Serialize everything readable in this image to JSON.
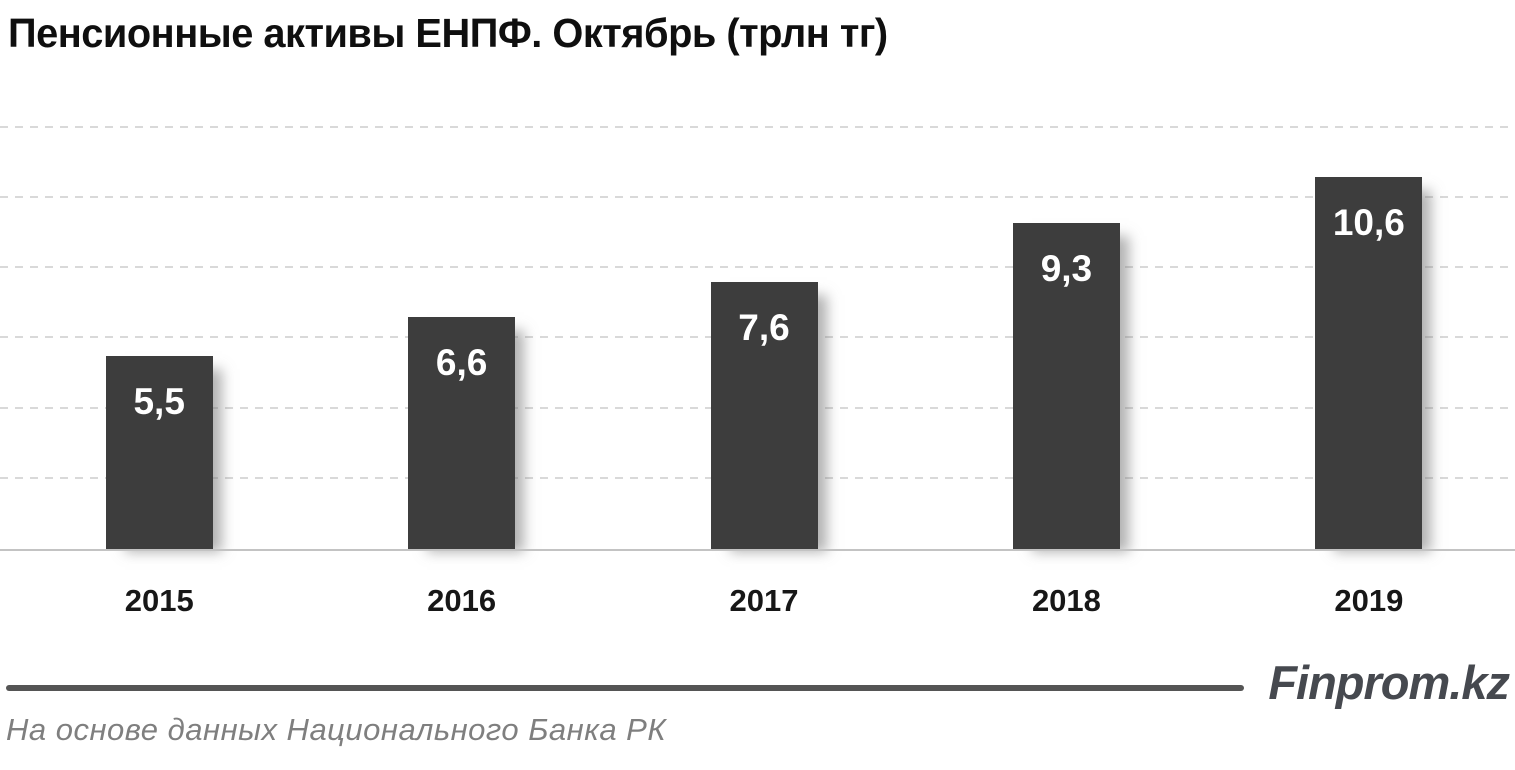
{
  "title": "Пенсионные активы ЕНПФ. Октябрь (трлн тг)",
  "chart_data": {
    "type": "bar",
    "title": "Пенсионные активы ЕНПФ. Октябрь (трлн тг)",
    "categories": [
      "2015",
      "2016",
      "2017",
      "2018",
      "2019"
    ],
    "values": [
      5.5,
      6.6,
      7.6,
      9.3,
      10.6
    ],
    "value_labels": [
      "5,5",
      "6,6",
      "7,6",
      "9,3",
      "10,6"
    ],
    "xlabel": "",
    "ylabel": "",
    "ylim": [
      0,
      13.08
    ],
    "gridline_values": [
      2,
      4,
      6,
      8,
      10,
      12
    ],
    "grid": "horizontal-dashed",
    "legend": "none",
    "bar_color": "#3d3d3d",
    "value_label_color": "#ffffff",
    "units": "трлн тг"
  },
  "footer": {
    "brand": "Finprom.kz",
    "source": "На основе данных Национального  Банка РК"
  },
  "colors": {
    "bar": "#3d3d3d",
    "gridline": "#d9d9d9",
    "baseline": "#c3c3c3",
    "footer_rule": "#555555",
    "brand_text": "#46494f",
    "source_text": "#7f7f7f",
    "title_text": "#0f0f0f"
  }
}
